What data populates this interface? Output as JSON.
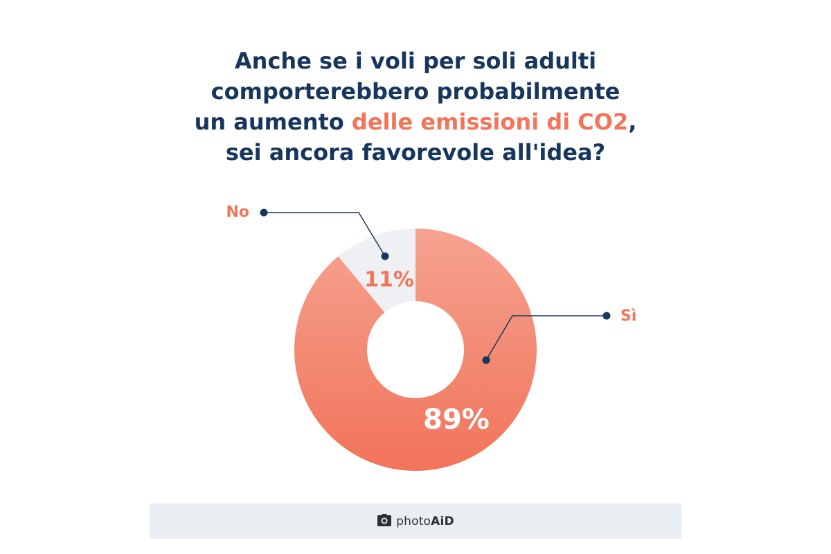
{
  "title": {
    "line1": "Anche se i voli per soli adulti",
    "line2": "comporterebbero probabilmente",
    "line3_before": "un aumento ",
    "line3_highlight": "delle emissioni di CO2",
    "line3_after": ",",
    "line4": "sei ancora favorevole all'idea?"
  },
  "chart_data": {
    "type": "pie",
    "donut": true,
    "categories": [
      "Sì",
      "No"
    ],
    "values": [
      89,
      11
    ],
    "value_labels": [
      "89%",
      "11%"
    ],
    "colors": [
      "#f2755a",
      "#eef0f3"
    ],
    "label_colors": [
      "#f2755a",
      "#f2755a"
    ],
    "value_label_colors": [
      "#ffffff",
      "#f2755a"
    ]
  },
  "colors": {
    "title": "#17365d",
    "accent": "#f2755a",
    "leader": "#17365d",
    "footer_bg": "#e8eef2"
  },
  "footer": {
    "brand_prefix": "photo",
    "brand_suffix": "AiD",
    "icon": "camera-icon"
  }
}
